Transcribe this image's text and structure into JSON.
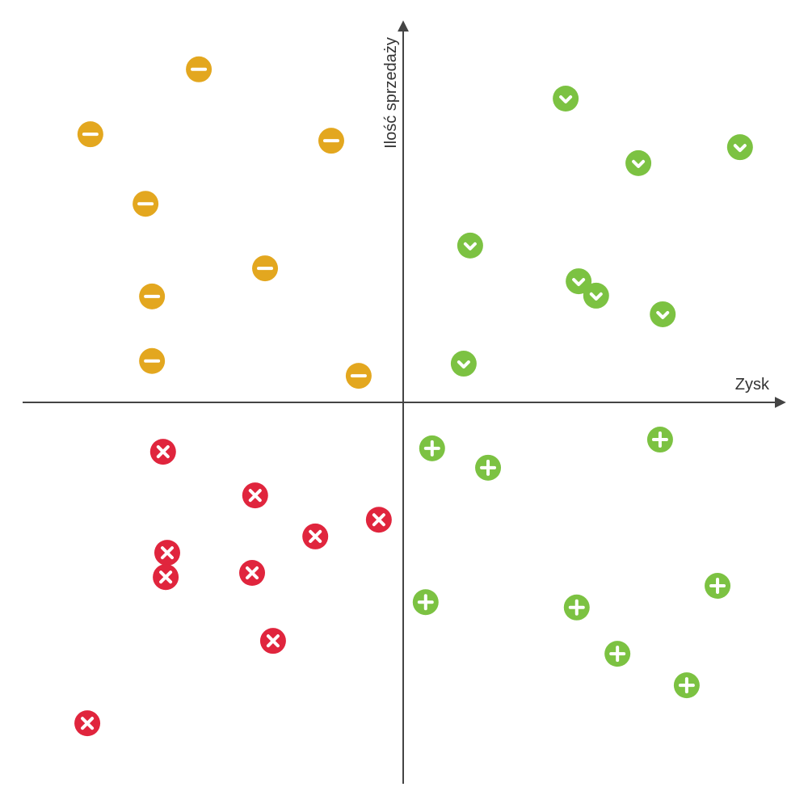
{
  "chart_data": {
    "type": "scatter",
    "x_label": "Zysk",
    "y_label": "Ilość sprzedaży",
    "xlim": [
      -100,
      100
    ],
    "ylim": [
      -100,
      100
    ],
    "series": [
      {
        "color": "#e3a71f",
        "marker": "minus",
        "x": [
          -53.7,
          -82.2,
          -18.9,
          -67.7,
          -36.3,
          -66.0,
          -66.0,
          -11.7
        ],
        "values": [
          87.7,
          70.6,
          68.9,
          52.3,
          35.3,
          27.9,
          10.9,
          7.0
        ]
      },
      {
        "color": "#7cc242",
        "marker": "check",
        "x": [
          42.7,
          88.5,
          61.8,
          17.6,
          46.1,
          50.7,
          68.2,
          15.9
        ],
        "values": [
          80.0,
          67.2,
          63.0,
          41.3,
          31.9,
          28.1,
          23.2,
          10.2
        ]
      },
      {
        "color": "#7cc242",
        "marker": "plus",
        "x": [
          7.6,
          22.3,
          67.5,
          5.9,
          45.6,
          82.6,
          56.3,
          74.5
        ],
        "values": [
          -12.1,
          -17.2,
          -9.8,
          -52.6,
          -54.0,
          -48.3,
          -66.2,
          -74.5
        ]
      },
      {
        "color": "#e0253d",
        "marker": "cross",
        "x": [
          -63.1,
          -38.9,
          -6.4,
          -23.1,
          -62.0,
          -62.4,
          -39.7,
          -34.2,
          -83.0
        ],
        "values": [
          -13.0,
          -24.5,
          -30.9,
          -35.3,
          -39.6,
          -46.0,
          -44.9,
          -62.8,
          -84.5
        ]
      }
    ]
  }
}
